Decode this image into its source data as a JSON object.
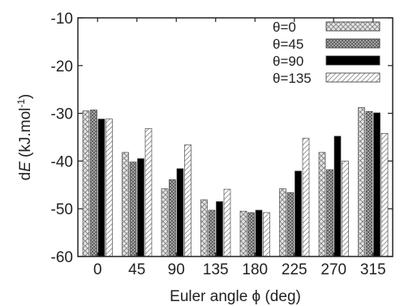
{
  "chart_data": {
    "type": "bar",
    "categories": [
      "0",
      "45",
      "90",
      "135",
      "180",
      "225",
      "270",
      "315"
    ],
    "series": [
      {
        "name": "θ=0",
        "values": [
          -29.5,
          -38.2,
          -45.8,
          -48.1,
          -50.5,
          -45.8,
          -38.2,
          -28.8
        ]
      },
      {
        "name": "θ=45",
        "values": [
          -29.3,
          -40.2,
          -43.9,
          -50.3,
          -50.8,
          -46.6,
          -41.8,
          -29.6
        ]
      },
      {
        "name": "θ=90",
        "values": [
          -31.2,
          -39.5,
          -41.6,
          -48.5,
          -50.3,
          -42.1,
          -34.8,
          -29.9
        ]
      },
      {
        "name": "θ=135",
        "values": [
          -31.2,
          -33.2,
          -36.6,
          -45.9,
          -50.8,
          -35.2,
          -40.0,
          -34.2
        ]
      }
    ],
    "xlabel": "Euler angle ϕ (deg)",
    "ylabel_prefix": "d",
    "ylabel_symbol": "E",
    "ylabel_suffix": " (kJ.mol",
    "ylabel_sup": "-1",
    "ylabel_close": ")",
    "ylim": [
      -60,
      -10
    ],
    "yticks": [
      -10,
      -20,
      -30,
      -40,
      -50,
      -60
    ],
    "ytick_labels": [
      "-10",
      "-20",
      "-30",
      "-40",
      "-50",
      "-60"
    ],
    "legend_position": "top-right",
    "grid": false
  }
}
